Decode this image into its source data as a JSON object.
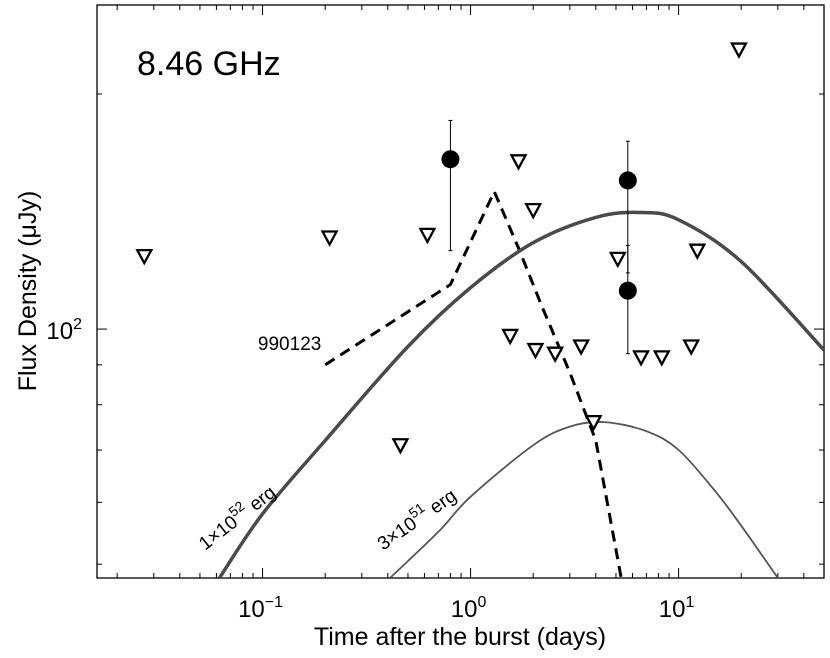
{
  "chart_data": {
    "type": "scatter",
    "panel_label": "8.46 GHz",
    "xlabel": "Time after the burst  (days)",
    "ylabel": "Flux Density  (μJy)",
    "x_scale": "log",
    "y_scale": "log",
    "xlim": [
      0.016,
      50
    ],
    "ylim": [
      48,
      260
    ],
    "grid": false,
    "x_ticks": [
      {
        "value": 0.1,
        "label": "10",
        "exp": "−1"
      },
      {
        "value": 1,
        "label": "10",
        "exp": "0"
      },
      {
        "value": 10,
        "label": "10",
        "exp": "1"
      }
    ],
    "y_ticks": [
      {
        "value": 100,
        "label": "10",
        "exp": "2"
      }
    ],
    "series": [
      {
        "kind": "detections",
        "marker": "filled-circle",
        "points": [
          {
            "x": 0.8,
            "y": 165,
            "err_low": 126,
            "err_high": 185
          },
          {
            "x": 5.7,
            "y": 155,
            "err_low": 118,
            "err_high": 174
          },
          {
            "x": 5.7,
            "y": 112,
            "err_low": 93,
            "err_high": 128
          }
        ]
      },
      {
        "kind": "upper-limits",
        "marker": "open-triangle-down",
        "points": [
          {
            "x": 0.027,
            "y": 124
          },
          {
            "x": 0.21,
            "y": 131
          },
          {
            "x": 0.62,
            "y": 132
          },
          {
            "x": 0.46,
            "y": 71
          },
          {
            "x": 1.7,
            "y": 164
          },
          {
            "x": 2.0,
            "y": 142
          },
          {
            "x": 1.55,
            "y": 98
          },
          {
            "x": 2.05,
            "y": 94
          },
          {
            "x": 2.55,
            "y": 93
          },
          {
            "x": 3.4,
            "y": 95
          },
          {
            "x": 3.9,
            "y": 76
          },
          {
            "x": 5.1,
            "y": 123
          },
          {
            "x": 6.6,
            "y": 92
          },
          {
            "x": 8.3,
            "y": 92
          },
          {
            "x": 11.5,
            "y": 95
          },
          {
            "x": 12.3,
            "y": 126
          },
          {
            "x": 19.5,
            "y": 228
          }
        ]
      },
      {
        "name": "990123",
        "kind": "dashed-curve",
        "points": [
          {
            "x": 0.2,
            "y": 90
          },
          {
            "x": 0.8,
            "y": 114
          },
          {
            "x": 1.3,
            "y": 150
          },
          {
            "x": 1.7,
            "y": 127
          },
          {
            "x": 2.2,
            "y": 107
          },
          {
            "x": 3.0,
            "y": 88
          },
          {
            "x": 4.0,
            "y": 72
          },
          {
            "x": 5.3,
            "y": 48
          }
        ]
      },
      {
        "name": "1×10^52 erg",
        "kind": "model-curve",
        "color": "#4a4a4a",
        "width": "thick",
        "points": [
          {
            "x": 0.062,
            "y": 48
          },
          {
            "x": 0.1,
            "y": 58
          },
          {
            "x": 0.2,
            "y": 72
          },
          {
            "x": 0.5,
            "y": 95
          },
          {
            "x": 1.0,
            "y": 113
          },
          {
            "x": 2.0,
            "y": 129
          },
          {
            "x": 4.0,
            "y": 139
          },
          {
            "x": 6.6,
            "y": 141
          },
          {
            "x": 10,
            "y": 138
          },
          {
            "x": 20,
            "y": 122
          },
          {
            "x": 50,
            "y": 94
          }
        ]
      },
      {
        "name": "3×10^51 erg",
        "kind": "model-curve",
        "color": "#555555",
        "width": "thin",
        "points": [
          {
            "x": 0.41,
            "y": 48
          },
          {
            "x": 0.7,
            "y": 55
          },
          {
            "x": 1.0,
            "y": 61
          },
          {
            "x": 2.0,
            "y": 71
          },
          {
            "x": 3.0,
            "y": 75
          },
          {
            "x": 4.4,
            "y": 76
          },
          {
            "x": 7.0,
            "y": 74
          },
          {
            "x": 10,
            "y": 70
          },
          {
            "x": 15,
            "y": 62
          },
          {
            "x": 20,
            "y": 56
          },
          {
            "x": 30,
            "y": 48
          }
        ]
      }
    ],
    "annotations": [
      {
        "text": "990123",
        "x": 0.095,
        "y": 94,
        "rotate": 0
      },
      {
        "text": "1×10",
        "sup": "52",
        "tail": " erg",
        "x": 0.053,
        "y": 52,
        "rotate": -38
      },
      {
        "text": "3×10",
        "sup": "51",
        "tail": " erg",
        "x": 0.38,
        "y": 52,
        "rotate": -35
      }
    ]
  }
}
